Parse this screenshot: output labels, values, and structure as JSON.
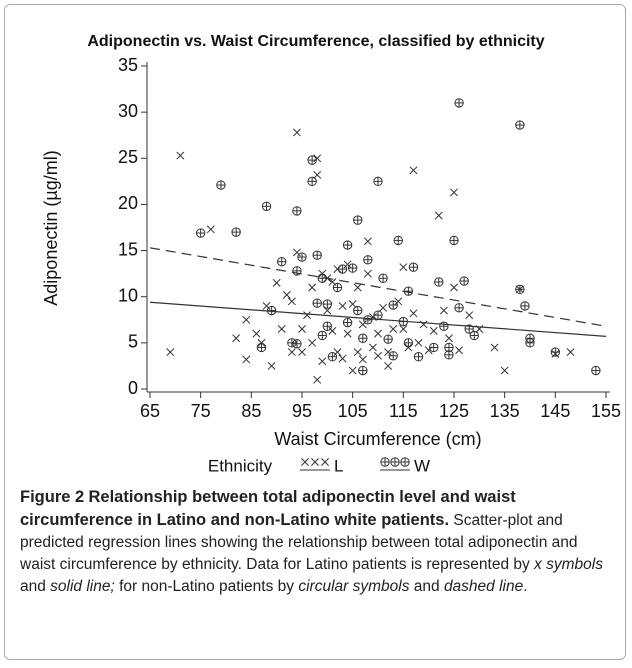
{
  "chart_data": {
    "type": "scatter",
    "title": "Adiponectin vs. Waist Circumference, classified by ethnicity",
    "x_label": "Waist Circumference (cm)",
    "y_label": "Adiponectin (µg/ml)",
    "xlim": [
      65,
      155
    ],
    "xticks": [
      65,
      75,
      85,
      95,
      105,
      115,
      125,
      135,
      145,
      155
    ],
    "ylim": [
      0,
      35
    ],
    "yticks": [
      0,
      5,
      10,
      15,
      20,
      25,
      30,
      35
    ],
    "legend_title": "Ethnicity",
    "series": [
      {
        "name": "L",
        "marker": "x",
        "color": "#333333",
        "x": [
          69,
          71,
          77,
          82,
          84,
          84,
          86,
          87,
          88,
          89,
          90,
          91,
          92,
          93,
          93,
          94,
          94,
          95,
          95,
          96,
          97,
          97,
          98,
          98,
          98,
          99,
          99,
          100,
          100,
          101,
          101,
          102,
          102,
          103,
          103,
          104,
          104,
          105,
          105,
          106,
          106,
          107,
          107,
          108,
          108,
          109,
          109,
          110,
          110,
          111,
          112,
          112,
          113,
          114,
          115,
          115,
          116,
          117,
          117,
          118,
          119,
          120,
          121,
          122,
          123,
          124,
          125,
          125,
          126,
          128,
          130,
          133,
          135,
          138,
          145,
          148
        ],
        "values": [
          4,
          25.3,
          17.3,
          5.5,
          3.2,
          7.5,
          6,
          5,
          9,
          2.5,
          11.5,
          6.5,
          10.2,
          4,
          9.5,
          27.8,
          14.8,
          6.5,
          4,
          8,
          5,
          11,
          23.2,
          25,
          1,
          3,
          12.5,
          8.5,
          12,
          6.3,
          11.6,
          13,
          4,
          9,
          3.3,
          13.5,
          6,
          9.2,
          2,
          4,
          11,
          3.2,
          7,
          12.5,
          16,
          4.5,
          7.8,
          6,
          3.6,
          8.8,
          4,
          2.5,
          6.5,
          9.5,
          13.2,
          6.5,
          4.5,
          23.7,
          8.2,
          5,
          7,
          4.2,
          6.3,
          18.8,
          8.5,
          5.5,
          21.3,
          11,
          4.2,
          8,
          6.5,
          4.5,
          2,
          10.8,
          3.8,
          4
        ]
      },
      {
        "name": "W",
        "marker": "circle-plus",
        "color": "#333333",
        "x": [
          75,
          79,
          82,
          87,
          88,
          89,
          91,
          93,
          94,
          94,
          94,
          95,
          97,
          97,
          98,
          98,
          99,
          99,
          100,
          100,
          101,
          102,
          103,
          104,
          104,
          105,
          106,
          106,
          107,
          107,
          108,
          108,
          110,
          110,
          111,
          112,
          113,
          113,
          114,
          115,
          116,
          116,
          117,
          118,
          121,
          122,
          123,
          124,
          124,
          125,
          126,
          126,
          127,
          128,
          129,
          138,
          138,
          139,
          140,
          140,
          145,
          153
        ],
        "values": [
          16.9,
          22.1,
          17,
          4.5,
          19.8,
          8.5,
          13.8,
          5,
          4.9,
          19.3,
          12.8,
          14.3,
          24.8,
          22.5,
          9.3,
          14.5,
          5.8,
          12,
          9.2,
          6.8,
          3.5,
          11,
          13,
          15.6,
          7.2,
          13.1,
          18.3,
          8.5,
          5.5,
          2,
          14,
          7.5,
          22.5,
          8,
          12,
          5.4,
          9.1,
          3.6,
          16.1,
          7.3,
          10.6,
          5,
          13.2,
          3.5,
          4.5,
          11.6,
          6.8,
          4.5,
          3.7,
          16.1,
          31,
          8.8,
          11.7,
          6.5,
          5.8,
          28.6,
          10.8,
          9,
          5.5,
          5,
          4,
          2
        ]
      }
    ],
    "fit_lines": [
      {
        "x": [
          65,
          155
        ],
        "values": [
          9.4,
          5.7
        ],
        "dashed": false,
        "color": "#333333"
      },
      {
        "x": [
          65,
          155
        ],
        "values": [
          15.3,
          6.8
        ],
        "dashed": true,
        "color": "#333333"
      }
    ]
  },
  "caption": {
    "label": "Figure 2",
    "title": "Relationship between total adiponectin level and waist circumference in Latino and non-Latino white patients.",
    "segments": [
      {
        "text": "Scatter-plot and predicted regression lines showing the relationship between total adiponectin and waist circumference by ethnicity. Data for Latino patients is represented by ",
        "italic": false
      },
      {
        "text": "x symbols",
        "italic": true
      },
      {
        "text": " and ",
        "italic": false
      },
      {
        "text": "solid line;",
        "italic": true
      },
      {
        "text": " for non-Latino patients by ",
        "italic": false
      },
      {
        "text": "circular symbols",
        "italic": true
      },
      {
        "text": " and ",
        "italic": false
      },
      {
        "text": "dashed line",
        "italic": true
      },
      {
        "text": ".",
        "italic": false
      }
    ]
  }
}
